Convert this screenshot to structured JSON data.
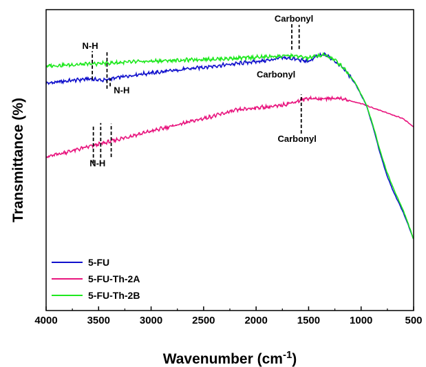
{
  "chart_data": {
    "type": "line",
    "title": "",
    "xlabel": "Wavenumber (cm",
    "xlabel_superscript": "-1",
    "xlabel_close": ")",
    "ylabel": "Transmittance (%)",
    "xlim": [
      4000,
      500
    ],
    "ylim": [
      0,
      100
    ],
    "x_reversed": true,
    "y_ticks_shown": false,
    "grid": false,
    "legend_position": "bottom-left",
    "x_ticks": [
      "4000",
      "3500",
      "3000",
      "2500",
      "2000",
      "1500",
      "1000",
      "500"
    ],
    "series": [
      {
        "name": "5-FU",
        "color": "#1010cc",
        "x": [
          4000,
          3800,
          3600,
          3450,
          3300,
          3100,
          2900,
          2700,
          2500,
          2300,
          2100,
          1900,
          1750,
          1650,
          1500,
          1420,
          1340,
          1250,
          1150,
          1050,
          950,
          880,
          820,
          760,
          700,
          650,
          600,
          550,
          500
        ],
        "y": [
          75.5,
          76.3,
          77.0,
          76.5,
          77.5,
          78.6,
          79.3,
          80.1,
          80.9,
          81.6,
          82.4,
          83.1,
          84.0,
          83.7,
          82.7,
          84.6,
          85.0,
          83.0,
          79.9,
          75.1,
          68.2,
          60.2,
          52.4,
          45.5,
          40.1,
          36.4,
          32.7,
          28.3,
          23.6
        ]
      },
      {
        "name": "5-FU-Th-2A",
        "color": "#e8157e",
        "x": [
          4000,
          3800,
          3600,
          3400,
          3200,
          3000,
          2800,
          2600,
          2400,
          2200,
          2000,
          1800,
          1600,
          1500,
          1400,
          1300,
          1200,
          1100,
          1000,
          900,
          850,
          800,
          700,
          600,
          500
        ],
        "y": [
          51.0,
          52.7,
          54.4,
          56.1,
          57.9,
          59.6,
          61.3,
          63.0,
          64.7,
          66.5,
          67.4,
          67.9,
          69.6,
          70.6,
          70.3,
          70.5,
          70.6,
          69.6,
          68.8,
          67.5,
          66.9,
          66.3,
          65.0,
          63.8,
          61.0
        ]
      },
      {
        "name": "5-FU-Th-2B",
        "color": "#1ee81e",
        "x": [
          4000,
          3800,
          3600,
          3450,
          3300,
          3100,
          2900,
          2700,
          2500,
          2300,
          2100,
          1900,
          1750,
          1650,
          1500,
          1420,
          1340,
          1250,
          1150,
          1050,
          950,
          880,
          820,
          760,
          700,
          650,
          600,
          550,
          500
        ],
        "y": [
          81.3,
          81.6,
          81.9,
          82.2,
          82.4,
          82.7,
          83.0,
          83.2,
          83.5,
          83.7,
          84.0,
          84.3,
          84.6,
          84.7,
          83.9,
          84.6,
          84.9,
          83.3,
          80.1,
          75.4,
          68.4,
          60.8,
          53.2,
          46.6,
          41.2,
          37.3,
          33.4,
          28.8,
          23.6
        ]
      }
    ],
    "annotations": [
      {
        "text": "N-H",
        "x": 3580,
        "y": 87.0
      },
      {
        "text": "N-H",
        "x": 3280,
        "y": 72.2
      },
      {
        "text": "Carbonyl",
        "x": 1640,
        "y": 96.0
      },
      {
        "text": "Carbonyl",
        "x": 1810,
        "y": 77.5
      },
      {
        "text": "N-H",
        "x": 3510,
        "y": 47.9
      },
      {
        "text": "Carbonyl",
        "x": 1610,
        "y": 56.1
      }
    ],
    "marker_lines": [
      {
        "x": 3560,
        "y1": 76.7,
        "y2": 86.2
      },
      {
        "x": 3420,
        "y1": 73.7,
        "y2": 85.9
      },
      {
        "x": 3390,
        "y1": 74.5,
        "y2": 77.2
      },
      {
        "x": 1660,
        "y1": 86.7,
        "y2": 95.4
      },
      {
        "x": 1590,
        "y1": 86.9,
        "y2": 94.9
      },
      {
        "x": 3550,
        "y1": 49.0,
        "y2": 61.3
      },
      {
        "x": 3480,
        "y1": 50.8,
        "y2": 62.3
      },
      {
        "x": 3380,
        "y1": 51.0,
        "y2": 62.1
      },
      {
        "x": 1570,
        "y1": 58.8,
        "y2": 71.8
      }
    ]
  }
}
